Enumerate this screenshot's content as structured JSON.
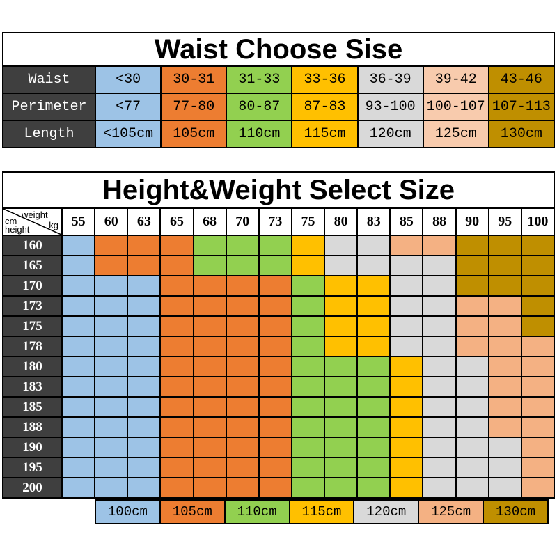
{
  "palette": {
    "blue": "#9dc3e6",
    "orange": "#ed7d31",
    "green": "#92d050",
    "yellow": "#ffc000",
    "gray": "#d9d9d9",
    "peach_light": "#f8cbad",
    "peach": "#f4b183",
    "dark_gold": "#bf8f00",
    "header_dark": "#3f3f3f",
    "border": "#000000",
    "text_light": "#ffffff",
    "text_dark": "#000000"
  },
  "chart_data": [
    {
      "type": "table",
      "title": "Waist Choose Sise",
      "row_headers": [
        "Waist",
        "Perimeter",
        "Length"
      ],
      "rows": [
        [
          "<30",
          "30-31",
          "31-33",
          "33-36",
          "36-39",
          "39-42",
          "43-46"
        ],
        [
          "<77",
          "77-80",
          "80-87",
          "87-83",
          "93-100",
          "100-107",
          "107-113"
        ],
        [
          "<105cm",
          "105cm",
          "110cm",
          "115cm",
          "120cm",
          "125cm",
          "130cm"
        ]
      ],
      "column_colors": [
        "blue",
        "orange",
        "green",
        "yellow",
        "gray",
        "peach_light",
        "dark_gold"
      ]
    },
    {
      "type": "table",
      "title": "Height&Weight Select Size",
      "corner": {
        "unit_top": "weight",
        "unit_top2": "kg",
        "unit_left": "cm",
        "unit_left2": "height"
      },
      "weights": [
        "55",
        "60",
        "63",
        "65",
        "68",
        "70",
        "73",
        "75",
        "80",
        "83",
        "85",
        "88",
        "90",
        "95",
        "100"
      ],
      "heights": [
        "160",
        "165",
        "170",
        "173",
        "175",
        "178",
        "180",
        "183",
        "185",
        "188",
        "190",
        "195",
        "200"
      ],
      "cells": [
        [
          "100cm",
          "105cm",
          "105cm",
          "105cm",
          "110cm",
          "110cm",
          "110cm",
          "115cm",
          "120cm",
          "120cm",
          "125cm",
          "125cm",
          "130cm",
          "130cm",
          "130cm"
        ],
        [
          "100cm",
          "105cm",
          "105cm",
          "105cm",
          "110cm",
          "110cm",
          "110cm",
          "115cm",
          "120cm",
          "120cm",
          "120cm",
          "120cm",
          "130cm",
          "130cm",
          "130cm"
        ],
        [
          "100cm",
          "100cm",
          "100cm",
          "105cm",
          "105cm",
          "105cm",
          "105cm",
          "110cm",
          "115cm",
          "115cm",
          "120cm",
          "120cm",
          "130cm",
          "130cm",
          "130cm"
        ],
        [
          "100cm",
          "100cm",
          "100cm",
          "105cm",
          "105cm",
          "105cm",
          "105cm",
          "110cm",
          "115cm",
          "115cm",
          "120cm",
          "120cm",
          "125cm",
          "125cm",
          "130cm"
        ],
        [
          "100cm",
          "100cm",
          "100cm",
          "105cm",
          "105cm",
          "105cm",
          "105cm",
          "110cm",
          "115cm",
          "115cm",
          "120cm",
          "120cm",
          "125cm",
          "125cm",
          "130cm"
        ],
        [
          "100cm",
          "100cm",
          "100cm",
          "105cm",
          "105cm",
          "105cm",
          "105cm",
          "110cm",
          "115cm",
          "115cm",
          "120cm",
          "120cm",
          "125cm",
          "125cm",
          "125cm"
        ],
        [
          "100cm",
          "100cm",
          "100cm",
          "105cm",
          "105cm",
          "105cm",
          "105cm",
          "110cm",
          "110cm",
          "110cm",
          "115cm",
          "120cm",
          "120cm",
          "125cm",
          "125cm"
        ],
        [
          "100cm",
          "100cm",
          "100cm",
          "105cm",
          "105cm",
          "105cm",
          "105cm",
          "110cm",
          "110cm",
          "110cm",
          "115cm",
          "120cm",
          "120cm",
          "125cm",
          "125cm"
        ],
        [
          "100cm",
          "100cm",
          "100cm",
          "105cm",
          "105cm",
          "105cm",
          "105cm",
          "110cm",
          "110cm",
          "110cm",
          "115cm",
          "120cm",
          "120cm",
          "125cm",
          "125cm"
        ],
        [
          "100cm",
          "100cm",
          "100cm",
          "105cm",
          "105cm",
          "105cm",
          "105cm",
          "110cm",
          "110cm",
          "110cm",
          "115cm",
          "120cm",
          "120cm",
          "125cm",
          "125cm"
        ],
        [
          "100cm",
          "100cm",
          "100cm",
          "105cm",
          "105cm",
          "105cm",
          "105cm",
          "110cm",
          "110cm",
          "110cm",
          "115cm",
          "120cm",
          "120cm",
          "120cm",
          "125cm"
        ],
        [
          "100cm",
          "100cm",
          "100cm",
          "105cm",
          "105cm",
          "105cm",
          "105cm",
          "110cm",
          "110cm",
          "110cm",
          "115cm",
          "120cm",
          "120cm",
          "120cm",
          "125cm"
        ],
        [
          "100cm",
          "100cm",
          "100cm",
          "105cm",
          "105cm",
          "105cm",
          "105cm",
          "110cm",
          "110cm",
          "110cm",
          "115cm",
          "120cm",
          "120cm",
          "120cm",
          "125cm"
        ]
      ],
      "legend": [
        {
          "label": "100cm",
          "color": "blue"
        },
        {
          "label": "105cm",
          "color": "orange"
        },
        {
          "label": "110cm",
          "color": "green"
        },
        {
          "label": "115cm",
          "color": "yellow"
        },
        {
          "label": "120cm",
          "color": "gray"
        },
        {
          "label": "125cm",
          "color": "peach"
        },
        {
          "label": "130cm",
          "color": "dark_gold"
        }
      ]
    }
  ]
}
